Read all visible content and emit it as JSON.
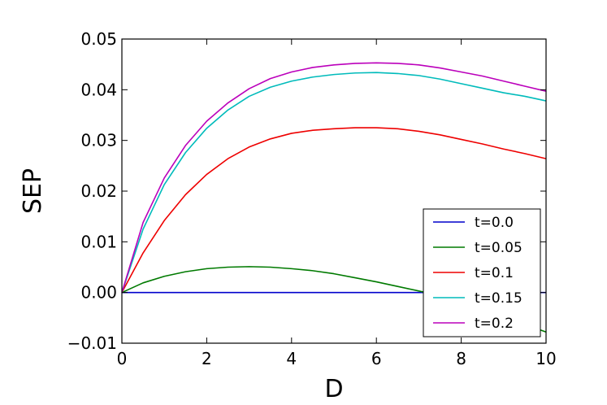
{
  "chart_data": {
    "type": "line",
    "title": "",
    "xlabel": "D",
    "ylabel": "SEP",
    "xlim": [
      0,
      10
    ],
    "ylim": [
      -0.01,
      0.05
    ],
    "xticks": [
      "0",
      "2",
      "4",
      "6",
      "8",
      "10"
    ],
    "yticks": [
      "−0.01",
      "0.00",
      "0.01",
      "0.02",
      "0.03",
      "0.04",
      "0.05"
    ],
    "grid": false,
    "legend_position": "lower-right",
    "x": [
      0,
      0.5,
      1,
      1.5,
      2,
      2.5,
      3,
      3.5,
      4,
      4.5,
      5,
      5.5,
      6,
      6.5,
      7,
      7.5,
      8,
      8.5,
      9,
      9.5,
      10
    ],
    "series": [
      {
        "name": "t=0.0",
        "color": "#0000cc",
        "values": [
          0,
          0,
          0,
          0,
          0,
          0,
          0,
          0,
          0,
          0,
          0,
          0,
          0,
          0,
          0,
          0,
          0,
          0,
          0,
          0,
          0
        ]
      },
      {
        "name": "t=0.05",
        "color": "#007a00",
        "values": [
          0,
          0.0019,
          0.0032,
          0.0041,
          0.0047,
          0.005,
          0.0051,
          0.005,
          0.0047,
          0.0043,
          0.0037,
          0.0029,
          0.0021,
          0.0012,
          0.0003,
          -0.0006,
          -0.0015,
          -0.0033,
          -0.0048,
          -0.0063,
          -0.0078
        ]
      },
      {
        "name": "t=0.1",
        "color": "#ee0000",
        "values": [
          0,
          0.0078,
          0.0142,
          0.0193,
          0.0233,
          0.0264,
          0.0287,
          0.0303,
          0.0314,
          0.032,
          0.0323,
          0.0325,
          0.0325,
          0.0323,
          0.0318,
          0.0311,
          0.0302,
          0.0293,
          0.0283,
          0.0274,
          0.0264
        ]
      },
      {
        "name": "t=0.15",
        "color": "#00bbbb",
        "values": [
          0,
          0.0125,
          0.0213,
          0.0276,
          0.0324,
          0.036,
          0.0387,
          0.0405,
          0.0417,
          0.0425,
          0.043,
          0.0433,
          0.0434,
          0.0432,
          0.0428,
          0.0421,
          0.0412,
          0.0403,
          0.0394,
          0.0387,
          0.0378
        ]
      },
      {
        "name": "t=0.2",
        "color": "#bb00bb",
        "values": [
          0,
          0.0138,
          0.0226,
          0.029,
          0.0338,
          0.0374,
          0.0402,
          0.0422,
          0.0435,
          0.0444,
          0.0449,
          0.0452,
          0.0453,
          0.0452,
          0.0449,
          0.0443,
          0.0435,
          0.0427,
          0.0417,
          0.0407,
          0.0397
        ]
      }
    ]
  }
}
